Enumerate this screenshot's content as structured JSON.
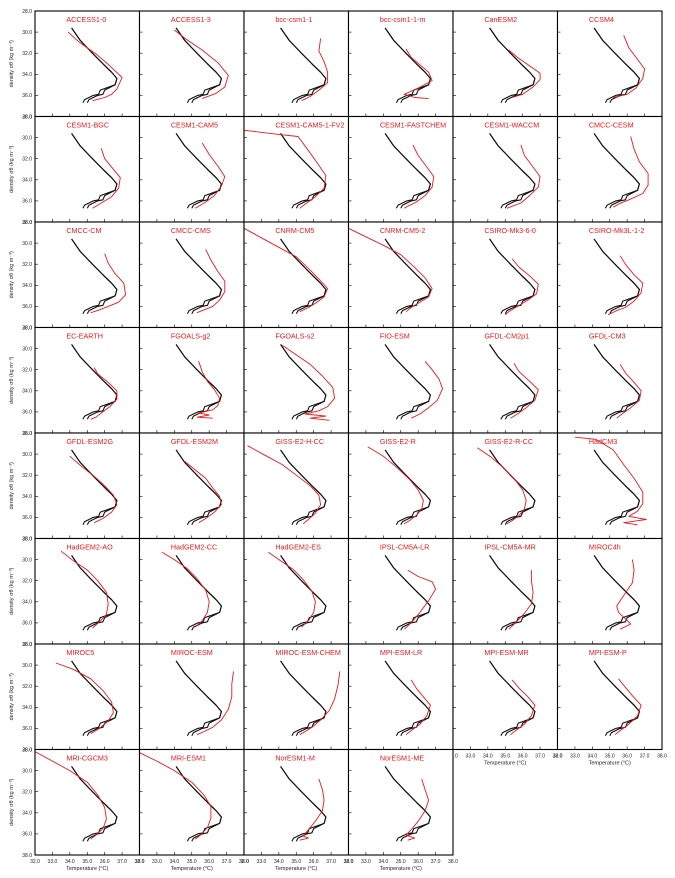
{
  "chart_data": {
    "type": "line",
    "xlabel": "Temperature (°C)",
    "ylabel": "density σθ (kg m⁻³)",
    "x_ticks": [
      "32.0",
      "33.0",
      "34.0",
      "35.0",
      "36.0",
      "37.0",
      "38.0"
    ],
    "y_ticks": [
      "28.0",
      "30.0",
      "32.0",
      "34.0",
      "36.0",
      "38.0"
    ],
    "xlim": [
      32,
      38
    ],
    "ylim": [
      28,
      38
    ],
    "colors": {
      "observation": "#111111",
      "model": "#e8191c"
    },
    "observation": {
      "x": [
        34.1,
        34.6,
        35.3,
        35.9,
        36.4,
        36.7,
        36.6,
        36.0,
        35.9,
        35.6,
        35.1,
        35.0
      ],
      "y": [
        29.6,
        30.8,
        32.0,
        33.0,
        33.8,
        34.4,
        35.0,
        35.5,
        35.9,
        36.0,
        36.4,
        36.7
      ]
    },
    "models": [
      {
        "name": "ACCESS1-0",
        "x": [
          33.9,
          34.5,
          35.6,
          36.3,
          37.0,
          36.7,
          36.4,
          36.0,
          35.3
        ],
        "y": [
          30.0,
          30.9,
          32.2,
          33.2,
          34.3,
          35.4,
          35.9,
          36.2,
          36.5
        ]
      },
      {
        "name": "ACCESS1-3",
        "x": [
          34.0,
          34.7,
          35.6,
          36.5,
          37.1,
          36.9,
          36.4,
          35.6
        ],
        "y": [
          29.8,
          30.7,
          31.7,
          32.9,
          34.1,
          35.2,
          35.8,
          36.3
        ]
      },
      {
        "name": "bcc-csm1-1",
        "x": [
          36.4,
          36.3,
          36.6,
          36.8,
          36.8,
          36.3,
          35.8,
          35.3
        ],
        "y": [
          30.6,
          31.8,
          32.8,
          33.8,
          34.8,
          35.5,
          36.1,
          36.5
        ]
      },
      {
        "name": "bcc-csm1-1-m",
        "x": [
          35.3,
          35.6,
          36.1,
          36.6,
          36.8,
          36.0,
          35.2,
          35.8,
          36.6
        ],
        "y": [
          31.6,
          32.4,
          33.1,
          33.8,
          34.6,
          35.3,
          35.9,
          36.2,
          36.3
        ]
      },
      {
        "name": "CanESM2",
        "x": [
          35.2,
          35.7,
          36.4,
          37.0,
          37.0,
          36.6,
          36.0,
          35.4
        ],
        "y": [
          31.7,
          32.4,
          33.2,
          33.9,
          34.5,
          35.2,
          35.9,
          36.2
        ]
      },
      {
        "name": "CCSM4",
        "x": [
          35.8,
          36.1,
          36.6,
          37.0,
          36.9,
          36.5,
          36.0,
          35.2
        ],
        "y": [
          30.3,
          31.5,
          32.6,
          33.5,
          34.4,
          35.3,
          35.9,
          36.2
        ]
      },
      {
        "name": "CESM1-BGC",
        "x": [
          35.8,
          36.0,
          36.5,
          36.9,
          36.8,
          36.4,
          35.9,
          35.5,
          35.3
        ],
        "y": [
          31.0,
          32.0,
          33.0,
          33.8,
          34.8,
          35.6,
          36.1,
          36.5,
          36.7
        ]
      },
      {
        "name": "CESM1-CAM5",
        "x": [
          35.6,
          36.0,
          36.5,
          36.9,
          36.7,
          36.3,
          35.8,
          35.4,
          35.2
        ],
        "y": [
          30.5,
          31.6,
          32.7,
          33.7,
          34.6,
          35.5,
          36.1,
          36.5,
          36.7
        ]
      },
      {
        "name": "CESM1-CAM5-1-FV2",
        "x": [
          32.0,
          34.0,
          35.1,
          35.6,
          36.2,
          36.7,
          36.6,
          36.1,
          35.6,
          35.2
        ],
        "y": [
          29.3,
          29.7,
          29.9,
          31.0,
          32.4,
          33.6,
          34.8,
          35.6,
          36.2,
          36.7
        ]
      },
      {
        "name": "CESM1-FASTCHEM",
        "x": [
          35.7,
          36.0,
          36.5,
          36.9,
          36.8,
          36.4,
          35.9,
          35.4,
          35.2
        ],
        "y": [
          30.7,
          31.7,
          32.8,
          33.7,
          34.7,
          35.5,
          36.1,
          36.5,
          36.7
        ]
      },
      {
        "name": "CESM1-WACCM",
        "x": [
          35.9,
          36.1,
          36.6,
          37.0,
          36.9,
          36.4,
          35.9,
          35.4,
          35.1
        ],
        "y": [
          30.7,
          31.7,
          32.8,
          33.7,
          34.7,
          35.5,
          36.2,
          36.5,
          36.7
        ]
      },
      {
        "name": "CMCC-CESM",
        "x": [
          36.2,
          36.4,
          36.7,
          37.2,
          37.2,
          36.9,
          36.1,
          35.5,
          35.2
        ],
        "y": [
          29.9,
          31.1,
          32.3,
          33.4,
          34.5,
          35.3,
          35.9,
          36.3,
          36.6
        ]
      },
      {
        "name": "CMCC-CM",
        "x": [
          36.0,
          36.2,
          36.6,
          37.1,
          37.2,
          36.8,
          36.2,
          35.6,
          35.2
        ],
        "y": [
          31.0,
          31.9,
          32.9,
          33.8,
          34.9,
          35.6,
          36.0,
          36.4,
          36.6
        ]
      },
      {
        "name": "CMCC-CMS",
        "x": [
          35.8,
          36.1,
          36.5,
          36.9,
          36.9,
          36.6,
          36.2,
          35.6,
          35.3
        ],
        "y": [
          30.6,
          31.6,
          32.7,
          33.6,
          34.6,
          35.4,
          36.0,
          36.4,
          36.6
        ]
      },
      {
        "name": "CNRM-CM5",
        "x": [
          32.0,
          33.0,
          34.0,
          35.0,
          35.7,
          36.3,
          36.8,
          36.6,
          36.1,
          35.7,
          35.2
        ],
        "y": [
          28.6,
          29.5,
          30.4,
          31.3,
          32.4,
          33.4,
          34.3,
          35.1,
          35.7,
          36.1,
          36.5
        ]
      },
      {
        "name": "CNRM-CM5-2",
        "x": [
          32.0,
          33.0,
          34.0,
          35.0,
          35.8,
          36.4,
          36.8,
          36.6,
          36.0,
          35.6,
          35.3
        ],
        "y": [
          28.6,
          29.4,
          30.2,
          31.1,
          32.3,
          33.3,
          34.3,
          35.1,
          35.7,
          36.1,
          36.5
        ]
      },
      {
        "name": "CSIRO-Mk3-6-0",
        "x": [
          35.4,
          35.8,
          36.4,
          36.9,
          36.8,
          36.3,
          35.7,
          35.2,
          35.0
        ],
        "y": [
          31.5,
          32.3,
          33.1,
          33.9,
          34.8,
          35.4,
          36.0,
          36.5,
          36.8
        ]
      },
      {
        "name": "CSIRO-Mk3L-1-2",
        "x": [
          35.6,
          35.9,
          36.4,
          36.9,
          36.8,
          36.4,
          35.9,
          35.4,
          34.9
        ],
        "y": [
          31.2,
          32.0,
          33.0,
          33.8,
          34.7,
          35.5,
          36.1,
          36.4,
          36.8
        ]
      },
      {
        "name": "EC-EARTH",
        "x": [
          35.4,
          35.6,
          36.2,
          36.7,
          36.7,
          36.3,
          35.8,
          35.5,
          35.2
        ],
        "y": [
          31.8,
          32.4,
          33.2,
          34.0,
          34.8,
          35.5,
          36.1,
          36.5,
          36.7
        ]
      },
      {
        "name": "FGOALS-g2",
        "x": [
          35.4,
          35.6,
          35.9,
          36.3,
          36.6,
          36.5,
          36.2,
          35.4,
          36.0,
          35.3,
          36.2
        ],
        "y": [
          31.2,
          32.2,
          33.1,
          33.9,
          34.7,
          35.4,
          35.8,
          36.1,
          36.3,
          36.5,
          36.6
        ]
      },
      {
        "name": "FGOALS-s2",
        "x": [
          34.2,
          35.0,
          35.8,
          36.5,
          37.1,
          37.2,
          36.8,
          36.3,
          35.5,
          36.7,
          35.8,
          36.9
        ],
        "y": [
          29.7,
          30.6,
          31.5,
          32.6,
          33.7,
          34.7,
          35.5,
          35.9,
          36.2,
          36.4,
          36.6,
          36.8
        ]
      },
      {
        "name": "FIO-ESM",
        "x": [
          36.4,
          36.8,
          37.2,
          37.4,
          37.1,
          36.6,
          36.1,
          35.6
        ],
        "y": [
          31.2,
          32.0,
          32.9,
          33.8,
          34.9,
          35.6,
          36.2,
          36.6
        ]
      },
      {
        "name": "GFDL-CM2p1",
        "x": [
          35.5,
          35.8,
          36.4,
          36.9,
          36.7,
          36.2,
          35.7,
          35.3
        ],
        "y": [
          31.4,
          32.2,
          33.1,
          33.9,
          34.9,
          35.6,
          36.2,
          36.6
        ]
      },
      {
        "name": "GFDL-CM3",
        "x": [
          35.6,
          35.9,
          36.4,
          36.8,
          36.7,
          36.2,
          35.7,
          35.4
        ],
        "y": [
          31.5,
          32.3,
          33.2,
          34.0,
          34.9,
          35.6,
          36.2,
          36.6
        ]
      },
      {
        "name": "GFDL-ESM2G",
        "x": [
          34.0,
          34.7,
          35.4,
          36.0,
          36.5,
          36.7,
          36.4,
          35.9,
          35.4
        ],
        "y": [
          30.2,
          31.2,
          32.1,
          33.0,
          33.9,
          34.8,
          35.5,
          36.1,
          36.5
        ]
      },
      {
        "name": "GFDL-ESM2M",
        "x": [
          34.6,
          35.2,
          35.8,
          36.2,
          36.6,
          36.7,
          36.3,
          35.8,
          35.4
        ],
        "y": [
          30.7,
          31.5,
          32.3,
          33.2,
          34.0,
          34.8,
          35.5,
          36.1,
          36.5
        ]
      },
      {
        "name": "GISS-E2-H-CC",
        "x": [
          32.2,
          33.2,
          34.2,
          35.0,
          35.8,
          36.3,
          36.4,
          36.1,
          35.7,
          35.4
        ],
        "y": [
          29.2,
          30.1,
          31.0,
          32.0,
          33.0,
          33.9,
          34.8,
          35.6,
          36.2,
          36.6
        ]
      },
      {
        "name": "GISS-E2-R",
        "x": [
          33.1,
          34.0,
          34.8,
          35.5,
          36.0,
          36.3,
          36.2,
          35.9,
          35.5,
          35.2
        ],
        "y": [
          29.3,
          30.2,
          31.3,
          32.4,
          33.4,
          34.4,
          35.2,
          35.8,
          36.3,
          36.6
        ]
      },
      {
        "name": "GISS-E2-R-CC",
        "x": [
          33.4,
          34.2,
          34.9,
          35.5,
          36.0,
          36.2,
          36.1,
          35.8,
          35.4,
          35.1
        ],
        "y": [
          29.4,
          30.3,
          31.3,
          32.3,
          33.4,
          34.4,
          35.2,
          35.8,
          36.3,
          36.6
        ]
      },
      {
        "name": "HadCM3",
        "x": [
          33.0,
          34.2,
          35.2,
          35.8,
          36.4,
          36.9,
          36.9,
          36.6,
          36.1,
          37.1,
          35.8,
          36.6
        ],
        "y": [
          28.4,
          28.6,
          29.6,
          31.0,
          32.3,
          33.6,
          34.7,
          35.4,
          35.9,
          36.2,
          36.5,
          36.7
        ]
      },
      {
        "name": "HadGEM2-AO",
        "x": [
          33.5,
          34.2,
          35.0,
          35.6,
          36.1,
          36.2,
          36.1,
          35.7,
          35.3
        ],
        "y": [
          29.2,
          30.1,
          31.0,
          32.0,
          33.1,
          34.2,
          35.2,
          35.9,
          36.5
        ]
      },
      {
        "name": "HadGEM2-CC",
        "x": [
          33.3,
          34.0,
          34.7,
          35.3,
          35.8,
          36.0,
          35.9,
          35.6,
          35.2
        ],
        "y": [
          29.3,
          30.0,
          30.8,
          31.8,
          32.9,
          34.0,
          35.0,
          35.8,
          36.4
        ]
      },
      {
        "name": "HadGEM2-ES",
        "x": [
          33.4,
          34.1,
          34.8,
          35.4,
          35.9,
          36.1,
          36.0,
          35.7,
          35.3
        ],
        "y": [
          29.3,
          30.1,
          30.9,
          31.9,
          33.0,
          34.0,
          35.0,
          35.8,
          36.4
        ]
      },
      {
        "name": "IPSL-CM5A-LR",
        "x": [
          35.4,
          36.0,
          36.8,
          37.0,
          36.6,
          36.1,
          35.7,
          35.4,
          35.2
        ],
        "y": [
          31.0,
          31.6,
          32.1,
          32.8,
          33.9,
          35.0,
          35.8,
          36.3,
          36.6
        ]
      },
      {
        "name": "IPSL-CM5A-MR",
        "x": [
          36.5,
          36.5,
          36.6,
          36.5,
          36.1,
          35.7,
          35.4,
          35.2
        ],
        "y": [
          31.0,
          32.0,
          33.1,
          34.2,
          35.1,
          35.8,
          36.3,
          36.6
        ]
      },
      {
        "name": "MIROC4h",
        "x": [
          36.3,
          36.4,
          36.3,
          35.8,
          35.4,
          35.5,
          35.9,
          36.2,
          35.6
        ],
        "y": [
          30.0,
          31.0,
          32.2,
          33.4,
          34.4,
          35.0,
          35.6,
          36.1,
          36.6
        ]
      },
      {
        "name": "MIROC5",
        "x": [
          33.2,
          34.2,
          35.2,
          35.9,
          36.4,
          36.5,
          36.2,
          35.7,
          35.2
        ],
        "y": [
          29.8,
          30.4,
          31.3,
          32.4,
          33.5,
          34.5,
          35.3,
          36.0,
          36.5
        ]
      },
      {
        "name": "MIROC-ESM",
        "x": [
          37.4,
          37.3,
          37.3,
          37.1,
          36.7,
          36.2,
          35.7,
          35.3
        ],
        "y": [
          30.6,
          31.8,
          33.0,
          34.2,
          35.2,
          35.9,
          36.3,
          36.6
        ]
      },
      {
        "name": "MIROC-ESM-CHEM",
        "x": [
          37.5,
          37.4,
          37.2,
          36.9,
          36.4,
          35.9,
          35.5,
          35.2
        ],
        "y": [
          30.6,
          31.9,
          33.2,
          34.3,
          35.2,
          35.9,
          36.3,
          36.6
        ]
      },
      {
        "name": "MPI-ESM-LR",
        "x": [
          35.6,
          35.9,
          36.3,
          36.7,
          36.5,
          36.1,
          35.6,
          35.3
        ],
        "y": [
          31.4,
          32.2,
          33.0,
          33.8,
          34.8,
          35.6,
          36.2,
          36.6
        ]
      },
      {
        "name": "MPI-ESM-MR",
        "x": [
          35.4,
          35.8,
          36.3,
          36.7,
          36.5,
          36.1,
          35.6,
          35.3
        ],
        "y": [
          31.4,
          32.2,
          33.0,
          33.8,
          34.8,
          35.6,
          36.2,
          36.6
        ]
      },
      {
        "name": "MPI-ESM-P",
        "x": [
          35.5,
          35.9,
          36.3,
          36.8,
          36.6,
          36.1,
          35.6,
          35.3
        ],
        "y": [
          31.3,
          32.1,
          32.9,
          33.8,
          34.8,
          35.6,
          36.2,
          36.6
        ]
      },
      {
        "name": "MRI-CGCM3",
        "x": [
          32.0,
          33.0,
          34.0,
          35.0,
          35.6,
          36.0,
          36.1,
          35.9,
          35.5,
          35.2
        ],
        "y": [
          28.2,
          29.1,
          30.0,
          31.1,
          32.3,
          33.5,
          34.6,
          35.5,
          36.1,
          36.5
        ]
      },
      {
        "name": "MRI-ESM1",
        "x": [
          32.0,
          33.0,
          34.0,
          35.0,
          35.7,
          36.1,
          36.1,
          35.9,
          35.5,
          35.2
        ],
        "y": [
          28.3,
          29.1,
          30.0,
          31.1,
          32.3,
          33.4,
          34.5,
          35.4,
          36.1,
          36.5
        ]
      },
      {
        "name": "NorESM1-M",
        "x": [
          36.3,
          36.5,
          36.6,
          36.5,
          36.1,
          35.7,
          35.4,
          35.7,
          35.2
        ],
        "y": [
          30.8,
          31.8,
          32.8,
          33.8,
          34.8,
          35.6,
          36.2,
          36.4,
          36.6
        ]
      },
      {
        "name": "NorESM1-ME",
        "x": [
          36.2,
          36.4,
          36.6,
          36.4,
          36.0,
          35.6,
          35.3,
          35.8,
          35.4
        ],
        "y": [
          30.8,
          31.8,
          32.8,
          33.8,
          34.8,
          35.6,
          36.1,
          36.4,
          36.6
        ]
      }
    ]
  }
}
